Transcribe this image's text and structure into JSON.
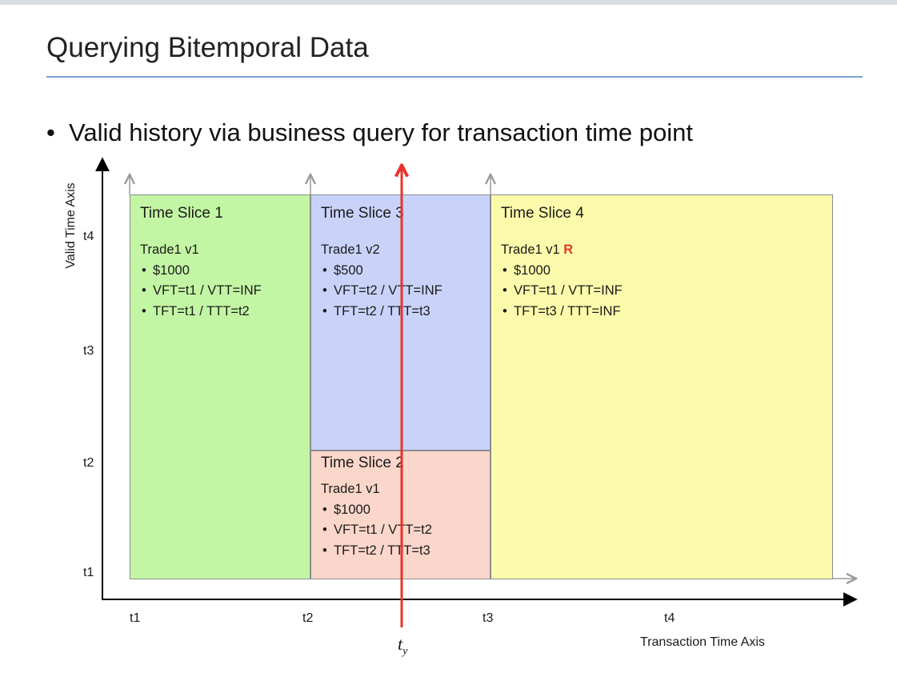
{
  "slide": {
    "title": "Querying Bitemporal Data",
    "bullet": "Valid history via business query for transaction time point"
  },
  "axes": {
    "y_label": "Valid Time Axis",
    "x_label": "Transaction Time Axis",
    "y_ticks": [
      "t1",
      "t2",
      "t3",
      "t4"
    ],
    "x_ticks": [
      "t1",
      "t2",
      "t3",
      "t4"
    ],
    "query_point": "t",
    "query_point_sub": "y",
    "query_line_color": "#e8342a"
  },
  "slices": {
    "s1": {
      "title": "Time Slice 1",
      "trade": "Trade1 v1",
      "amount": "$1000",
      "valid": "VFT=t1 / VTT=INF",
      "tx": "TFT=t1 / TTT=t2",
      "color": "#c3f6a4"
    },
    "s3": {
      "title": "Time Slice 3",
      "trade": "Trade1 v2",
      "amount": "$500",
      "valid": "VFT=t2 / VTT=INF",
      "tx": "TFT=t2 / TTT=t3",
      "color": "#c9d3fa"
    },
    "s2": {
      "title": "Time Slice 2",
      "trade": "Trade1 v1",
      "amount": "$1000",
      "valid": "VFT=t1 / VTT=t2",
      "tx": "TFT=t2 / TTT=t3",
      "color": "#fbd6ca"
    },
    "s4": {
      "title": "Time Slice 4",
      "trade": "Trade1 v1",
      "marker": "R",
      "amount": "$1000",
      "valid": "VFT=t1 / VTT=INF",
      "tx": "TFT=t3 / TTT=INF",
      "color": "#fcfbab"
    }
  }
}
